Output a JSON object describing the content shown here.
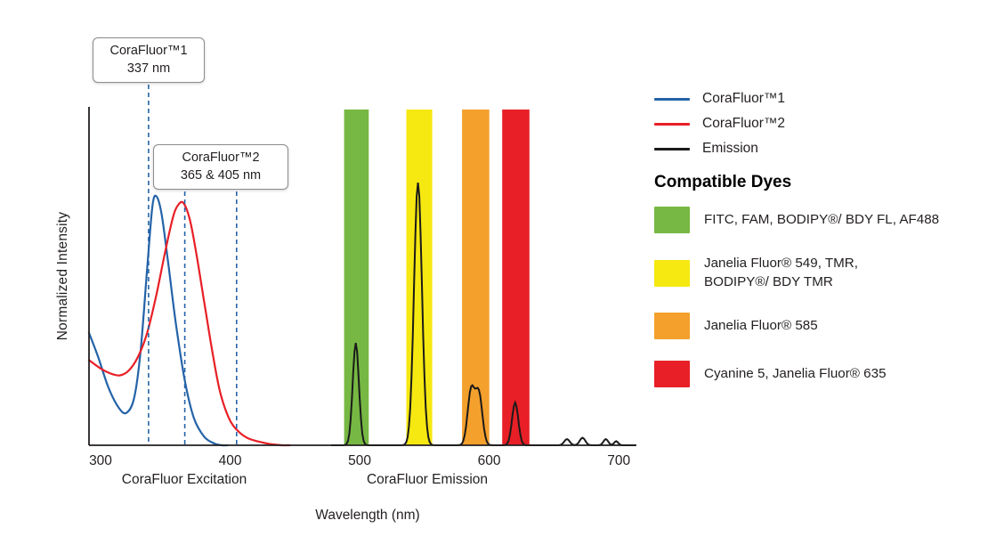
{
  "chart": {
    "y_axis_label": "Normalized Intensity",
    "x_axis_label": "Wavelength (nm)",
    "x_section_labels": {
      "excitation": "CoraFluor Excitation",
      "emission": "CoraFluor Emission"
    },
    "callouts": [
      {
        "title": "CoraFluor™1",
        "value": "337 nm"
      },
      {
        "title": "CoraFluor™2",
        "value": "365 & 405 nm"
      }
    ]
  },
  "legend": {
    "items": [
      {
        "label": "CoraFluor™1",
        "color": "#2463A8"
      },
      {
        "label": "CoraFluor™2",
        "color": "#E81F26"
      },
      {
        "label": "Emission",
        "color": "#1A1A1A"
      }
    ]
  },
  "dyes": {
    "heading": "Compatible Dyes",
    "items": [
      {
        "label": "FITC, FAM, BODIPY®/ BDY FL, AF488",
        "color": "#76B843"
      },
      {
        "label": "Janelia Fluor® 549, TMR,\nBODIPY®/ BDY TMR",
        "color": "#F6E811"
      },
      {
        "label": "Janelia Fluor® 585",
        "color": "#F4A02C"
      },
      {
        "label": "Cyanine 5, Janelia Fluor® 635",
        "color": "#E81F26"
      }
    ]
  },
  "chart_data": {
    "type": "line",
    "xlabel": "Wavelength (nm)",
    "ylabel": "Normalized Intensity",
    "xlim": [
      291,
      714
    ],
    "ylim": [
      0,
      1
    ],
    "x_ticks": [
      300,
      400,
      500,
      600,
      700
    ],
    "grid": false,
    "legend_position": "right",
    "marker_color": "#2463A8",
    "emission_color": "#1A1A1A",
    "axis_color": "#231F20",
    "dashed_markers_nm": [
      337,
      365,
      405
    ],
    "series": [
      {
        "id": "corafluor1-excitation",
        "name": "CoraFluor™1",
        "color": "#2463A8",
        "points": [
          [
            291,
            0.33
          ],
          [
            298,
            0.26
          ],
          [
            306,
            0.17
          ],
          [
            314,
            0.11
          ],
          [
            320,
            0.095
          ],
          [
            326,
            0.14
          ],
          [
            331,
            0.28
          ],
          [
            336,
            0.52
          ],
          [
            340,
            0.7
          ],
          [
            343,
            0.73
          ],
          [
            347,
            0.68
          ],
          [
            352,
            0.54
          ],
          [
            358,
            0.36
          ],
          [
            365,
            0.19
          ],
          [
            372,
            0.08
          ],
          [
            380,
            0.025
          ],
          [
            388,
            0.005
          ],
          [
            394,
            0.0
          ],
          [
            398,
            0.0
          ]
        ]
      },
      {
        "id": "corafluor2-excitation",
        "name": "CoraFluor™2",
        "color": "#E81F26",
        "points": [
          [
            291,
            0.25
          ],
          [
            300,
            0.225
          ],
          [
            308,
            0.21
          ],
          [
            315,
            0.205
          ],
          [
            322,
            0.22
          ],
          [
            329,
            0.26
          ],
          [
            336,
            0.33
          ],
          [
            343,
            0.44
          ],
          [
            350,
            0.57
          ],
          [
            356,
            0.67
          ],
          [
            360,
            0.705
          ],
          [
            364,
            0.71
          ],
          [
            369,
            0.66
          ],
          [
            374,
            0.56
          ],
          [
            380,
            0.42
          ],
          [
            386,
            0.28
          ],
          [
            392,
            0.16
          ],
          [
            399,
            0.08
          ],
          [
            406,
            0.042
          ],
          [
            414,
            0.02
          ],
          [
            424,
            0.009
          ],
          [
            432,
            0.003
          ],
          [
            440,
            0.0
          ],
          [
            446,
            0.0
          ]
        ]
      }
    ],
    "emission_series_name": "Emission",
    "emission_peaks": [
      {
        "center_nm": 497,
        "height": 0.3,
        "width_nm": 3.4
      },
      {
        "center_nm": 545,
        "height": 0.77,
        "width_nm": 4.3
      },
      {
        "center_nm": 586,
        "height": 0.16,
        "width_nm": 3.8
      },
      {
        "center_nm": 592,
        "height": 0.15,
        "width_nm": 3.8
      },
      {
        "center_nm": 620,
        "height": 0.125,
        "width_nm": 3.4
      },
      {
        "center_nm": 660,
        "height": 0.018,
        "width_nm": 3.0
      },
      {
        "center_nm": 672,
        "height": 0.022,
        "width_nm": 3.0
      },
      {
        "center_nm": 690,
        "height": 0.018,
        "width_nm": 2.6
      },
      {
        "center_nm": 698,
        "height": 0.012,
        "width_nm": 2.2
      }
    ],
    "filter_bands": [
      {
        "name": "green",
        "range_nm": [
          488,
          507
        ],
        "color": "#76B843"
      },
      {
        "name": "yellow",
        "range_nm": [
          536,
          556
        ],
        "color": "#F6E811"
      },
      {
        "name": "orange",
        "range_nm": [
          579,
          600
        ],
        "color": "#F4A02C"
      },
      {
        "name": "red",
        "range_nm": [
          610,
          631
        ],
        "color": "#E81F26"
      }
    ]
  }
}
